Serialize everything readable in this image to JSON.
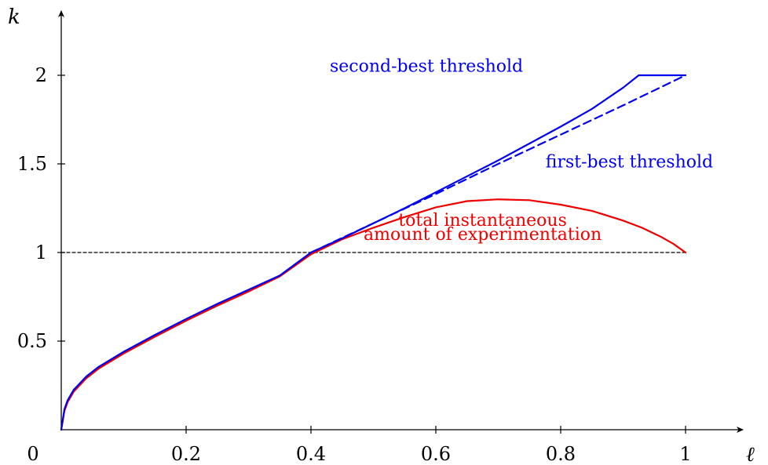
{
  "chart_data": {
    "type": "line",
    "title": "",
    "xlabel": "ℓ",
    "ylabel": "k",
    "xlim": [
      0,
      1.09
    ],
    "ylim": [
      0,
      2.4
    ],
    "x_origin_label": "0",
    "x_ticks": [
      {
        "value": 0.2,
        "label": "0.2"
      },
      {
        "value": 0.4,
        "label": "0.4"
      },
      {
        "value": 0.6,
        "label": "0.6"
      },
      {
        "value": 0.8,
        "label": "0.8"
      },
      {
        "value": 1.0,
        "label": "1"
      }
    ],
    "y_ticks": [
      {
        "value": 0.5,
        "label": "0.5"
      },
      {
        "value": 1.0,
        "label": "1"
      },
      {
        "value": 1.5,
        "label": "1.5"
      },
      {
        "value": 2.0,
        "label": "2"
      }
    ],
    "grid": false,
    "series": [
      {
        "key": "second_best",
        "style": "solid",
        "color": "#0000ee",
        "x": [
          0,
          0.005,
          0.01,
          0.02,
          0.04,
          0.06,
          0.1,
          0.15,
          0.2,
          0.25,
          0.3,
          0.35,
          0.4,
          0.45,
          0.5,
          0.55,
          0.6,
          0.65,
          0.7,
          0.75,
          0.8,
          0.85,
          0.9,
          0.925,
          0.95,
          1.0
        ],
        "y": [
          0,
          0.115,
          0.165,
          0.225,
          0.3,
          0.355,
          0.44,
          0.535,
          0.625,
          0.71,
          0.79,
          0.87,
          1.0,
          1.08,
          1.165,
          1.25,
          1.34,
          1.43,
          1.52,
          1.615,
          1.71,
          1.81,
          1.93,
          2.0,
          2.0,
          2.0
        ]
      },
      {
        "key": "first_best",
        "style": "dashed",
        "color": "#0000ee",
        "x": [
          0.4,
          0.5,
          0.6,
          0.7,
          0.8,
          0.9,
          1.0
        ],
        "y": [
          1.0,
          1.165,
          1.33,
          1.5,
          1.665,
          1.83,
          2.0
        ]
      },
      {
        "key": "experimentation",
        "style": "solid",
        "color": "#ee0000",
        "x": [
          0,
          0.005,
          0.01,
          0.02,
          0.04,
          0.06,
          0.1,
          0.15,
          0.2,
          0.25,
          0.3,
          0.35,
          0.4,
          0.45,
          0.5,
          0.55,
          0.6,
          0.65,
          0.7,
          0.75,
          0.8,
          0.85,
          0.9,
          0.93,
          0.96,
          0.98,
          1.0
        ],
        "y": [
          0,
          0.105,
          0.155,
          0.215,
          0.29,
          0.345,
          0.43,
          0.525,
          0.615,
          0.7,
          0.78,
          0.865,
          0.99,
          1.075,
          1.14,
          1.2,
          1.255,
          1.29,
          1.3,
          1.295,
          1.27,
          1.235,
          1.18,
          1.14,
          1.09,
          1.05,
          1.0
        ]
      },
      {
        "key": "reference",
        "style": "dashed",
        "color": "#000000",
        "x": [
          0,
          1.0
        ],
        "y": [
          1.0,
          1.0
        ]
      }
    ],
    "annotations": [
      {
        "key": "second_best",
        "text": "second-best threshold",
        "color": "#0000ee",
        "x": 0.585,
        "y": 2.02
      },
      {
        "key": "first_best",
        "text": "first-best threshold",
        "color": "#0000ee",
        "x": 0.91,
        "y": 1.48
      },
      {
        "key": "exp_line1",
        "text": "total instantaneous",
        "color": "#ee0000",
        "x": 0.675,
        "y": 1.15
      },
      {
        "key": "exp_line2",
        "text": "amount of experimentation",
        "color": "#ee0000",
        "x": 0.675,
        "y": 1.07
      }
    ]
  }
}
